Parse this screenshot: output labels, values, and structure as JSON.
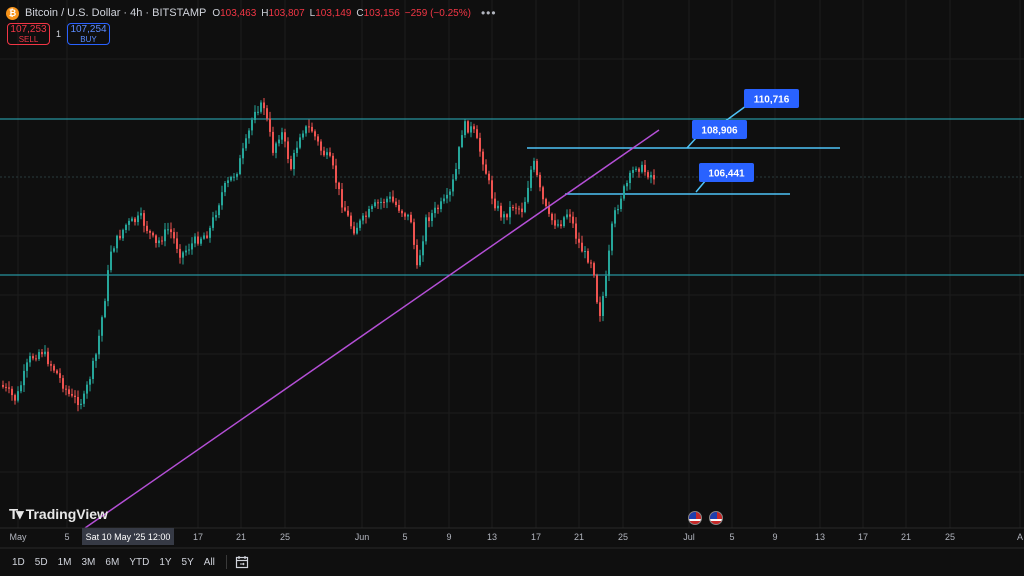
{
  "header": {
    "symbol": "Bitcoin / U.S. Dollar · 4h · BITSTAMP",
    "ohlc": [
      {
        "k": "O",
        "v": "103,463"
      },
      {
        "k": "H",
        "v": "103,807"
      },
      {
        "k": "L",
        "v": "103,149"
      },
      {
        "k": "C",
        "v": "103,156"
      }
    ],
    "change": "−259 (−0.25%)",
    "more": "•••"
  },
  "trade": {
    "sell_price": "107,253",
    "sell_label": "SELL",
    "spread": "1",
    "buy_price": "107,254",
    "buy_label": "BUY"
  },
  "callouts": [
    "110,716",
    "108,906",
    "106,441"
  ],
  "x_axis": {
    "ticks": [
      "May",
      "5",
      "17",
      "21",
      "25",
      "Jun",
      "5",
      "9",
      "13",
      "17",
      "21",
      "25",
      "Jul",
      "5",
      "9",
      "13",
      "17",
      "21",
      "25",
      "A"
    ],
    "crosshair_label": "Sat 10 May '25  12:00"
  },
  "timeframes": [
    "1D",
    "5D",
    "1M",
    "3M",
    "6M",
    "YTD",
    "1Y",
    "5Y",
    "All"
  ],
  "logo_text": "TradingView",
  "colors": {
    "background": "#0f0f0f",
    "up": "#26a69a",
    "down": "#ef5350",
    "trendline": "#b44fd6",
    "level_lines": "#2bb3c0",
    "callout": "#2962ff"
  },
  "icons": [
    "bitcoin-icon",
    "calendar-range-icon",
    "us-flag-icon"
  ]
}
